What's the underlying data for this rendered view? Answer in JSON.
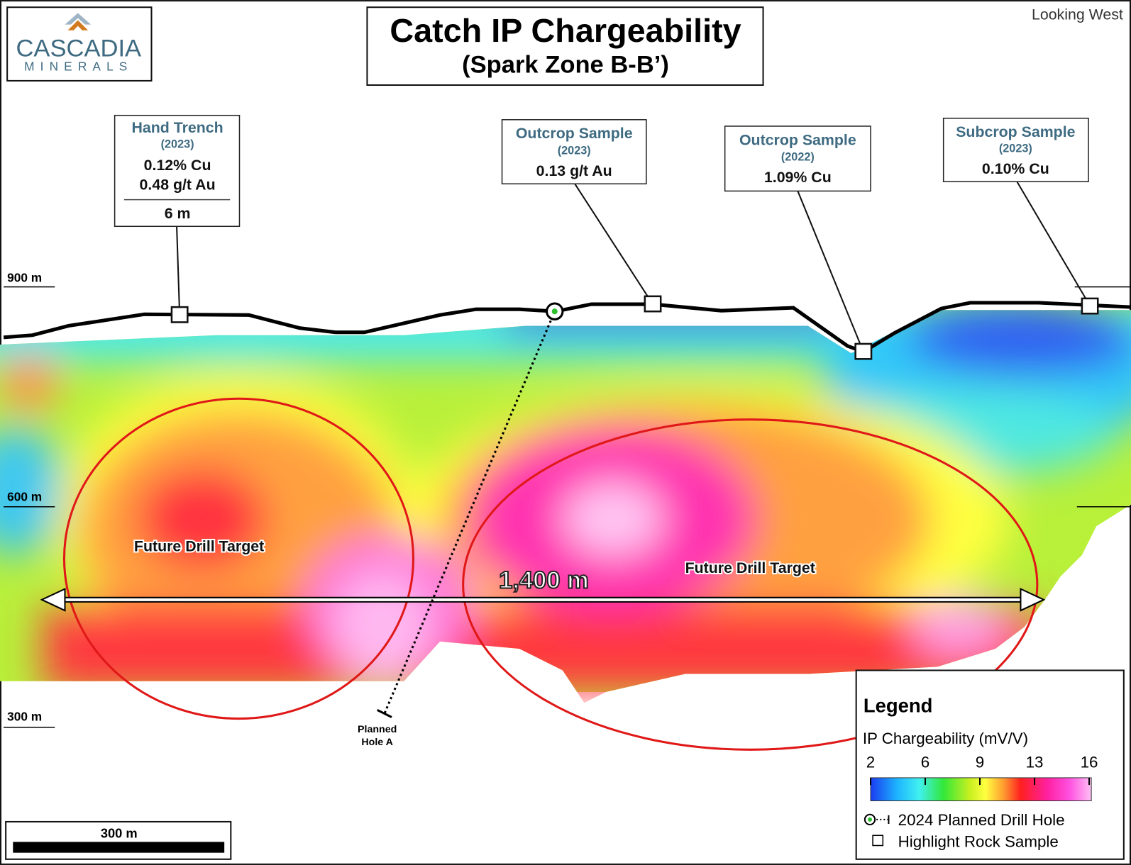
{
  "header": {
    "title": "Catch IP Chargeability",
    "subtitle": "(Spark Zone B-B’)",
    "view": "Looking West"
  },
  "logo": {
    "name": "CASCADIA",
    "sub": "MINERALS"
  },
  "elevations": [
    "900 m",
    "600 m",
    "300 m"
  ],
  "callouts": [
    {
      "title": "Hand Trench",
      "year": "(2023)",
      "lines": [
        "0.12% Cu",
        "0.48 g/t Au"
      ],
      "footer": "6 m"
    },
    {
      "title": "Outcrop Sample",
      "year": "(2023)",
      "lines": [
        "0.13 g/t Au"
      ]
    },
    {
      "title": "Outcrop Sample",
      "year": "(2022)",
      "lines": [
        "1.09% Cu"
      ]
    },
    {
      "title": "Subcrop Sample",
      "year": "(2023)",
      "lines": [
        "0.10% Cu"
      ]
    }
  ],
  "targets": [
    "Future Drill Target",
    "Future Drill Target"
  ],
  "distance": "1,400 m",
  "drill_hole": {
    "label": [
      "Planned",
      "Hole A"
    ]
  },
  "scale_bar": "300 m",
  "legend": {
    "title": "Legend",
    "colorbar_title": "IP Chargeability (mV/V)",
    "ticks": [
      2,
      6,
      9,
      13,
      16
    ],
    "items": [
      "2024 Planned Drill Hole",
      "Highlight Rock Sample"
    ]
  }
}
